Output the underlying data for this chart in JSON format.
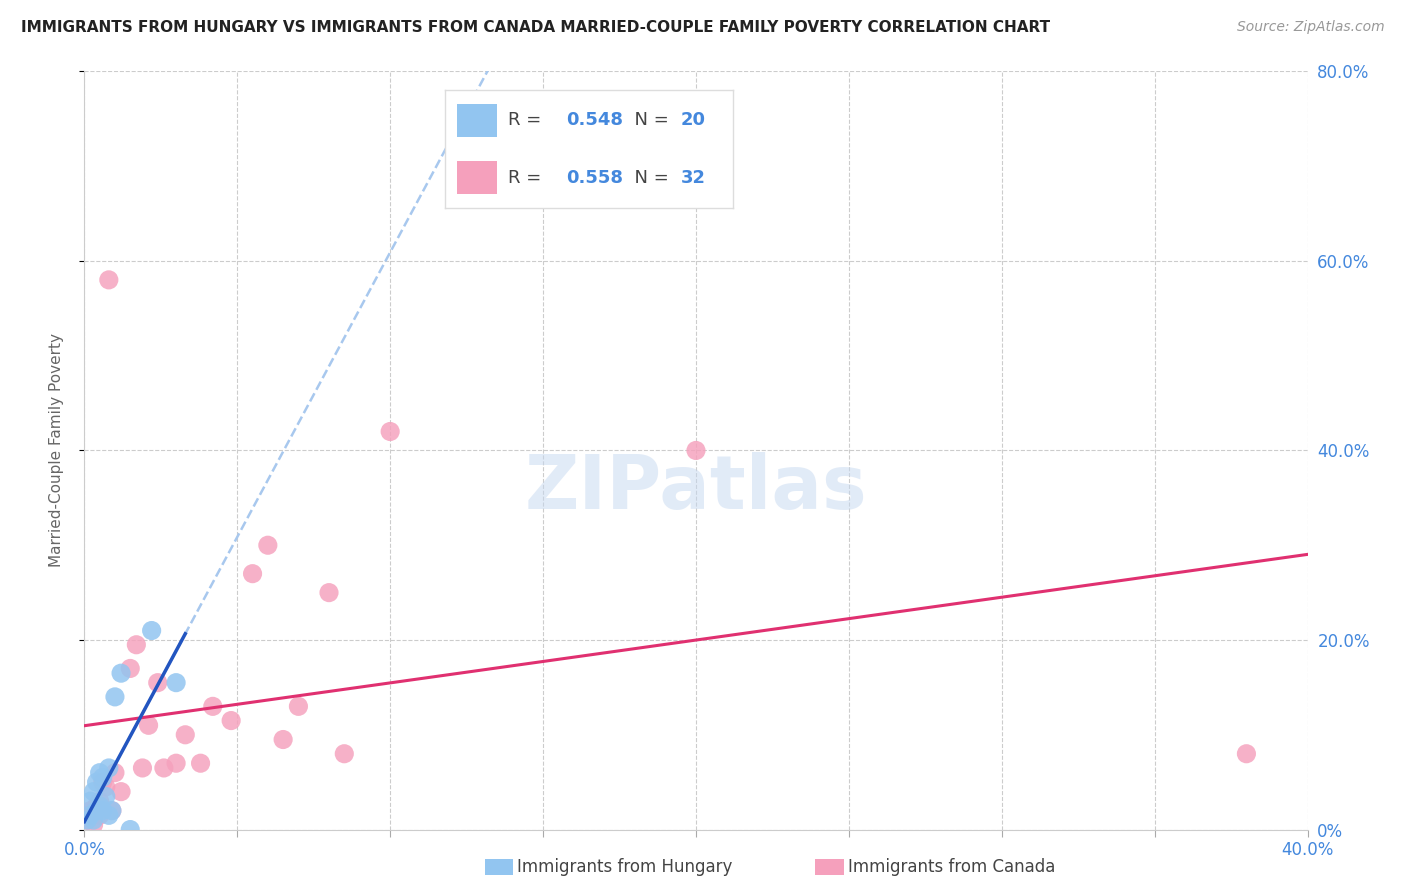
{
  "title": "IMMIGRANTS FROM HUNGARY VS IMMIGRANTS FROM CANADA MARRIED-COUPLE FAMILY POVERTY CORRELATION CHART",
  "source": "Source: ZipAtlas.com",
  "ylabel": "Married-Couple Family Poverty",
  "xlim": [
    0.0,
    0.4
  ],
  "ylim": [
    0.0,
    0.8
  ],
  "xticks": [
    0.0,
    0.05,
    0.1,
    0.15,
    0.2,
    0.25,
    0.3,
    0.35,
    0.4
  ],
  "yticks": [
    0.0,
    0.2,
    0.4,
    0.6,
    0.8
  ],
  "ytick_labels": [
    "0%",
    "20.0%",
    "40.0%",
    "60.0%",
    "80.0%"
  ],
  "hungary_color": "#92C5F0",
  "canada_color": "#F5A0BC",
  "hungary_line_color": "#2255C0",
  "canada_line_color": "#E03070",
  "dashed_line_color": "#A8C8EE",
  "watermark": "ZIPatlas",
  "hungary_x": [
    0.001,
    0.002,
    0.002,
    0.003,
    0.003,
    0.004,
    0.004,
    0.005,
    0.005,
    0.006,
    0.006,
    0.007,
    0.008,
    0.008,
    0.009,
    0.01,
    0.012,
    0.015,
    0.022,
    0.03
  ],
  "hungary_y": [
    0.01,
    0.015,
    0.03,
    0.01,
    0.04,
    0.02,
    0.05,
    0.025,
    0.06,
    0.02,
    0.055,
    0.035,
    0.015,
    0.065,
    0.02,
    0.14,
    0.165,
    0.0,
    0.21,
    0.155
  ],
  "canada_x": [
    0.001,
    0.002,
    0.003,
    0.004,
    0.005,
    0.005,
    0.006,
    0.007,
    0.008,
    0.009,
    0.01,
    0.012,
    0.015,
    0.017,
    0.019,
    0.021,
    0.024,
    0.026,
    0.03,
    0.033,
    0.038,
    0.042,
    0.048,
    0.055,
    0.06,
    0.065,
    0.07,
    0.08,
    0.085,
    0.1,
    0.2,
    0.38
  ],
  "canada_y": [
    0.015,
    0.02,
    0.005,
    0.025,
    0.015,
    0.03,
    0.05,
    0.045,
    0.58,
    0.02,
    0.06,
    0.04,
    0.17,
    0.195,
    0.065,
    0.11,
    0.155,
    0.065,
    0.07,
    0.1,
    0.07,
    0.13,
    0.115,
    0.27,
    0.3,
    0.095,
    0.13,
    0.25,
    0.08,
    0.42,
    0.4,
    0.08
  ],
  "hungary_R": "0.548",
  "hungary_N": "20",
  "canada_R": "0.558",
  "canada_N": "32",
  "tick_color": "#4488DD",
  "grid_color": "#CCCCCC",
  "label_color": "#666666",
  "title_color": "#222222",
  "source_color": "#999999"
}
